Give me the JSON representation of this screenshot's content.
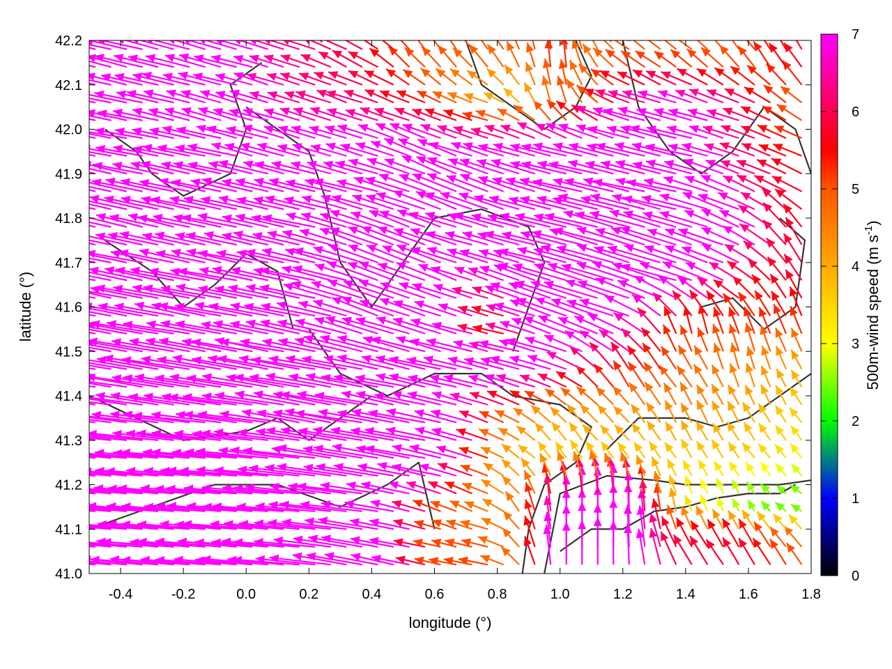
{
  "chart_data": {
    "type": "vector-field",
    "xlabel": "longitude (°)",
    "ylabel": "latitude (°)",
    "colorbar_label": "500m-wind speed (m s",
    "colorbar_label_sup": "-1",
    "colorbar_label_end": ")",
    "xlim": [
      -0.5,
      1.8
    ],
    "ylim": [
      41.0,
      42.2
    ],
    "xticks": [
      "-0.4",
      "-0.2",
      "0.0",
      "0.2",
      "0.4",
      "0.6",
      "0.8",
      "1.0",
      "1.2",
      "1.4",
      "1.6",
      "1.8"
    ],
    "yticks": [
      "41.0",
      "41.1",
      "41.2",
      "41.3",
      "41.4",
      "41.5",
      "41.6",
      "41.7",
      "41.8",
      "41.9",
      "42.0",
      "42.1",
      "42.2"
    ],
    "grid": true,
    "colorbar": {
      "range": [
        0,
        7
      ],
      "ticks": [
        "0",
        "1",
        "2",
        "3",
        "4",
        "5",
        "6",
        "7"
      ],
      "stops": [
        [
          0,
          "#000000"
        ],
        [
          1,
          "#0000ff"
        ],
        [
          2,
          "#00ff00"
        ],
        [
          3,
          "#ffff00"
        ],
        [
          4,
          "#ffaa00"
        ],
        [
          5,
          "#ff5500"
        ],
        [
          5.5,
          "#ff0000"
        ],
        [
          6,
          "#ff0050"
        ],
        [
          7,
          "#ff00ff"
        ]
      ]
    },
    "wind_lons": [
      -0.4,
      -0.2,
      0.0,
      0.2,
      0.4,
      0.6,
      0.8,
      1.0,
      1.2,
      1.4,
      1.6,
      1.75
    ],
    "wind_lats": [
      42.15,
      42.05,
      41.95,
      41.85,
      41.75,
      41.65,
      41.55,
      41.45,
      41.35,
      41.25,
      41.15,
      41.05
    ],
    "wind_uv": [
      [
        [
          -8,
          2
        ],
        [
          -8,
          2
        ],
        [
          -7,
          2
        ],
        [
          -6,
          2
        ],
        [
          -5,
          3
        ],
        [
          -3,
          4
        ],
        [
          -3,
          4
        ],
        [
          0,
          5.5
        ],
        [
          -4,
          3
        ],
        [
          -4,
          3
        ],
        [
          -3,
          4
        ],
        [
          -3,
          5
        ]
      ],
      [
        [
          -8,
          1.5
        ],
        [
          -8,
          2
        ],
        [
          -7,
          2
        ],
        [
          -6,
          2
        ],
        [
          -6,
          2
        ],
        [
          -5,
          2
        ],
        [
          -4,
          1
        ],
        [
          -1,
          5
        ],
        [
          -6,
          2
        ],
        [
          -7,
          2
        ],
        [
          -6,
          2
        ],
        [
          -4,
          3
        ]
      ],
      [
        [
          -8,
          1.5
        ],
        [
          -8,
          1.5
        ],
        [
          -8,
          2
        ],
        [
          -7,
          2
        ],
        [
          -7,
          2
        ],
        [
          -7,
          3
        ],
        [
          -7,
          2
        ],
        [
          -8,
          2
        ],
        [
          -8,
          2
        ],
        [
          -8,
          2
        ],
        [
          -6,
          2
        ],
        [
          -5,
          2
        ]
      ],
      [
        [
          -9,
          2
        ],
        [
          -9,
          2
        ],
        [
          -9,
          2
        ],
        [
          -8,
          2
        ],
        [
          -8,
          2
        ],
        [
          -8,
          3
        ],
        [
          -8,
          3
        ],
        [
          -8,
          2
        ],
        [
          -9,
          2
        ],
        [
          -9,
          2
        ],
        [
          -6,
          3
        ],
        [
          -5,
          3
        ]
      ],
      [
        [
          -9,
          2
        ],
        [
          -9,
          2
        ],
        [
          -9,
          2
        ],
        [
          -9,
          2
        ],
        [
          -8,
          3
        ],
        [
          -8,
          3
        ],
        [
          -8,
          2
        ],
        [
          -9,
          2
        ],
        [
          -10,
          3
        ],
        [
          -9,
          3
        ],
        [
          -7,
          3
        ],
        [
          -3,
          5
        ]
      ],
      [
        [
          -10,
          2
        ],
        [
          -10,
          2
        ],
        [
          -10,
          2
        ],
        [
          -9,
          2
        ],
        [
          -9,
          3
        ],
        [
          -8,
          3
        ],
        [
          -6,
          2
        ],
        [
          -9,
          3
        ],
        [
          -10,
          3
        ],
        [
          -9,
          3
        ],
        [
          -5,
          3
        ],
        [
          -3,
          5
        ]
      ],
      [
        [
          -11,
          2
        ],
        [
          -11,
          2
        ],
        [
          -10,
          2
        ],
        [
          -10,
          2
        ],
        [
          -9,
          3
        ],
        [
          -9,
          3
        ],
        [
          -5,
          1
        ],
        [
          -8,
          3
        ],
        [
          -8,
          3
        ],
        [
          -1,
          5.5
        ],
        [
          -2,
          5
        ],
        [
          -2,
          5
        ]
      ],
      [
        [
          -12,
          2
        ],
        [
          -12,
          2
        ],
        [
          -11,
          2
        ],
        [
          -11,
          2
        ],
        [
          -10,
          2
        ],
        [
          -9,
          2
        ],
        [
          -8,
          2
        ],
        [
          -7,
          2
        ],
        [
          -3,
          5
        ],
        [
          -3,
          4
        ],
        [
          -1,
          4.5
        ],
        [
          -2,
          3.5
        ]
      ],
      [
        [
          -12,
          1.5
        ],
        [
          -12,
          1.5
        ],
        [
          -12,
          1.5
        ],
        [
          -11,
          2
        ],
        [
          -11,
          2
        ],
        [
          -10,
          2
        ],
        [
          -5,
          2
        ],
        [
          -3,
          3
        ],
        [
          -3,
          3
        ],
        [
          -2,
          4
        ],
        [
          -2,
          3.5
        ],
        [
          -2,
          3
        ]
      ],
      [
        [
          -12,
          1
        ],
        [
          -12,
          1
        ],
        [
          -12,
          1
        ],
        [
          -12,
          1.5
        ],
        [
          -11,
          2
        ],
        [
          -10,
          2
        ],
        [
          -4,
          2
        ],
        [
          -2,
          3
        ],
        [
          -2,
          3
        ],
        [
          -2,
          3
        ],
        [
          -2,
          3
        ],
        [
          -2,
          2.5
        ]
      ],
      [
        [
          -12,
          1
        ],
        [
          -12,
          1
        ],
        [
          -12,
          1
        ],
        [
          -12,
          1
        ],
        [
          -11,
          1.5
        ],
        [
          -5,
          2
        ],
        [
          -4,
          2
        ],
        [
          0,
          7
        ],
        [
          0,
          8
        ],
        [
          -1,
          3
        ],
        [
          -1,
          2
        ],
        [
          -2,
          1
        ]
      ],
      [
        [
          -12,
          1
        ],
        [
          -12,
          1
        ],
        [
          -11,
          1
        ],
        [
          -11,
          1
        ],
        [
          -10,
          2
        ],
        [
          -5,
          1
        ],
        [
          -5,
          1
        ],
        [
          0,
          8
        ],
        [
          0,
          8
        ],
        [
          -3,
          5
        ],
        [
          -3,
          5
        ],
        [
          -3,
          4
        ]
      ]
    ],
    "contours": [
      [
        [
          0.88,
          41.0
        ],
        [
          0.9,
          41.1
        ],
        [
          0.95,
          41.2
        ],
        [
          1.05,
          41.25
        ],
        [
          1.1,
          41.33
        ],
        [
          1.0,
          41.38
        ],
        [
          0.85,
          41.4
        ],
        [
          0.75,
          41.45
        ],
        [
          0.6,
          41.45
        ],
        [
          0.45,
          41.4
        ],
        [
          0.3,
          41.45
        ],
        [
          0.2,
          41.55
        ]
      ],
      [
        [
          0.95,
          41.0
        ],
        [
          1.0,
          41.18
        ],
        [
          1.15,
          41.22
        ],
        [
          1.3,
          41.21
        ],
        [
          1.4,
          41.2
        ],
        [
          1.55,
          41.2
        ],
        [
          1.7,
          41.2
        ],
        [
          1.8,
          41.21
        ]
      ],
      [
        [
          1.0,
          41.05
        ],
        [
          1.1,
          41.1
        ],
        [
          1.2,
          41.1
        ],
        [
          1.3,
          41.14
        ],
        [
          1.4,
          41.15
        ],
        [
          1.5,
          41.17
        ],
        [
          1.6,
          41.18
        ],
        [
          1.7,
          41.18
        ],
        [
          1.75,
          41.2
        ]
      ],
      [
        [
          1.15,
          41.28
        ],
        [
          1.25,
          41.35
        ],
        [
          1.4,
          41.35
        ],
        [
          1.5,
          41.33
        ],
        [
          1.6,
          41.35
        ],
        [
          1.7,
          41.4
        ],
        [
          1.8,
          41.45
        ]
      ],
      [
        [
          0.85,
          41.5
        ],
        [
          0.95,
          41.7
        ],
        [
          0.9,
          41.78
        ],
        [
          0.75,
          41.82
        ],
        [
          0.6,
          41.8
        ],
        [
          0.5,
          41.7
        ],
        [
          0.4,
          41.6
        ],
        [
          0.3,
          41.7
        ],
        [
          0.25,
          41.85
        ],
        [
          0.2,
          41.95
        ],
        [
          0.1,
          42.0
        ],
        [
          0.0,
          42.05
        ]
      ],
      [
        [
          -0.5,
          41.4
        ],
        [
          -0.35,
          41.35
        ],
        [
          -0.2,
          41.3
        ],
        [
          0.0,
          41.32
        ],
        [
          0.1,
          41.35
        ],
        [
          0.2,
          41.3
        ],
        [
          0.3,
          41.35
        ],
        [
          0.4,
          41.4
        ]
      ],
      [
        [
          -0.5,
          41.1
        ],
        [
          -0.3,
          41.15
        ],
        [
          -0.1,
          41.2
        ],
        [
          0.1,
          41.2
        ],
        [
          0.3,
          41.15
        ],
        [
          0.45,
          41.2
        ],
        [
          0.55,
          41.25
        ],
        [
          0.6,
          41.1
        ]
      ],
      [
        [
          -0.45,
          41.75
        ],
        [
          -0.3,
          41.68
        ],
        [
          -0.2,
          41.6
        ],
        [
          -0.1,
          41.65
        ],
        [
          0.0,
          41.72
        ],
        [
          0.1,
          41.68
        ],
        [
          0.15,
          41.55
        ]
      ],
      [
        [
          -0.45,
          42.0
        ],
        [
          -0.35,
          41.95
        ],
        [
          -0.3,
          41.9
        ],
        [
          -0.2,
          41.85
        ],
        [
          -0.05,
          41.9
        ],
        [
          0.0,
          42.0
        ],
        [
          -0.05,
          42.1
        ],
        [
          0.05,
          42.15
        ]
      ],
      [
        [
          0.7,
          42.2
        ],
        [
          0.75,
          42.1
        ],
        [
          0.85,
          42.05
        ],
        [
          0.95,
          42.0
        ],
        [
          1.05,
          42.05
        ],
        [
          1.1,
          42.12
        ],
        [
          1.05,
          42.2
        ]
      ],
      [
        [
          1.2,
          42.2
        ],
        [
          1.25,
          42.05
        ],
        [
          1.35,
          41.95
        ],
        [
          1.45,
          41.9
        ],
        [
          1.55,
          41.95
        ],
        [
          1.65,
          42.05
        ],
        [
          1.75,
          42.0
        ],
        [
          1.8,
          41.9
        ]
      ],
      [
        [
          1.45,
          41.6
        ],
        [
          1.55,
          41.62
        ],
        [
          1.65,
          41.55
        ],
        [
          1.75,
          41.6
        ],
        [
          1.78,
          41.75
        ],
        [
          1.7,
          41.8
        ]
      ]
    ]
  }
}
